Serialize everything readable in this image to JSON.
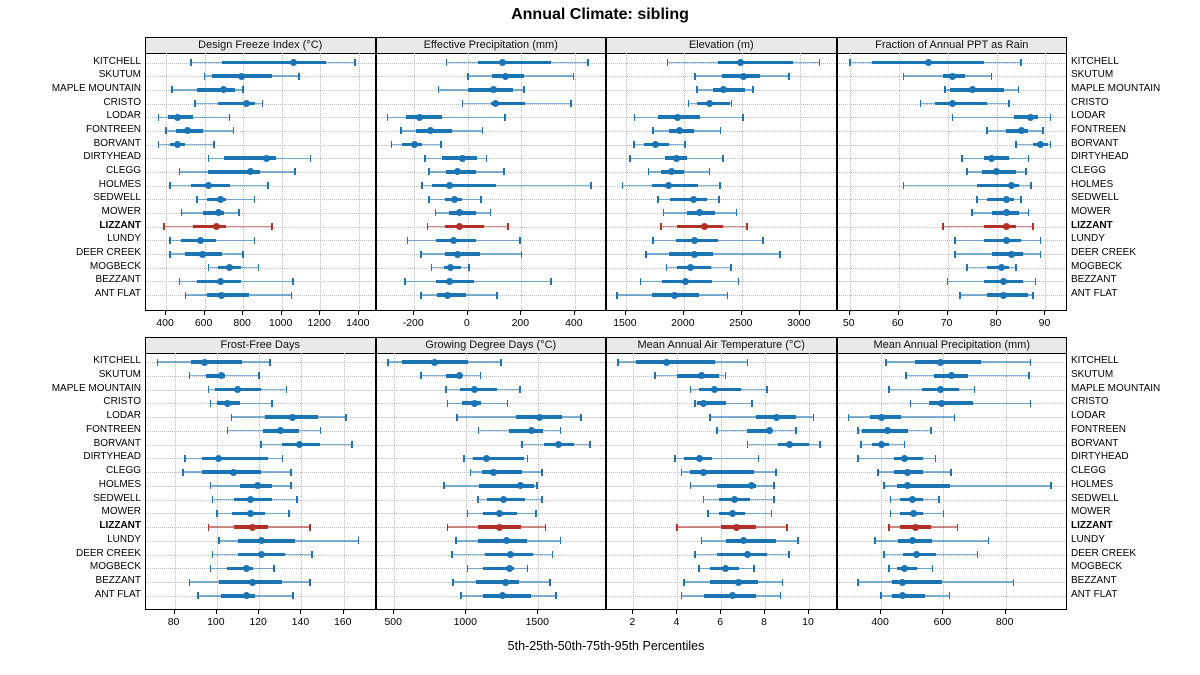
{
  "title": "Annual Climate: sibling",
  "footer": "5th-25th-50th-75th-95th Percentiles",
  "sites": [
    "KITCHELL",
    "SKUTUM",
    "MAPLE MOUNTAIN",
    "CRISTO",
    "LODAR",
    "FONTREEN",
    "BORVANT",
    "DIRTYHEAD",
    "CLEGG",
    "HOLMES",
    "SEDWELL",
    "MOWER",
    "LIZZANT",
    "LUNDY",
    "DEER CREEK",
    "MOGBECK",
    "BEZZANT",
    "ANT FLAT"
  ],
  "highlight_site": "LIZZANT",
  "colors": {
    "series": "#1b74b4",
    "highlight": "#b23028",
    "panel_header_bg": "#e9e9e9",
    "grid": "#bdbdbd",
    "frame": "#000000"
  },
  "chart_data": {
    "type": "dotplot-percentiles",
    "percentile_labels": [
      "5th",
      "25th",
      "50th",
      "75th",
      "95th"
    ],
    "legend_position": "none",
    "grid": "dotted",
    "panels": [
      {
        "title": "Design Freeze Index (°C)",
        "row": "top",
        "ticks": [
          400,
          600,
          800,
          1000,
          1200,
          1400
        ],
        "xlim": [
          296,
          1492
        ],
        "values": [
          [
            530,
            690,
            1060,
            1230,
            1380
          ],
          [
            600,
            640,
            790,
            950,
            1090
          ],
          [
            430,
            560,
            700,
            760,
            800
          ],
          [
            550,
            670,
            820,
            860,
            900
          ],
          [
            360,
            410,
            460,
            540,
            730
          ],
          [
            400,
            450,
            510,
            590,
            750
          ],
          [
            360,
            420,
            460,
            500,
            650
          ],
          [
            620,
            700,
            920,
            970,
            1150
          ],
          [
            470,
            620,
            840,
            890,
            1070
          ],
          [
            420,
            530,
            620,
            730,
            930
          ],
          [
            560,
            610,
            680,
            710,
            860
          ],
          [
            480,
            590,
            670,
            700,
            780
          ],
          [
            390,
            540,
            660,
            710,
            950
          ],
          [
            420,
            480,
            580,
            660,
            860
          ],
          [
            420,
            500,
            590,
            690,
            800
          ],
          [
            620,
            670,
            730,
            790,
            880
          ],
          [
            470,
            560,
            680,
            790,
            1060
          ],
          [
            500,
            610,
            690,
            830,
            1050
          ]
        ]
      },
      {
        "title": "Effective Precipitation (mm)",
        "row": "top",
        "ticks": [
          -200,
          0,
          200,
          400
        ],
        "xlim": [
          -341,
          520
        ],
        "values": [
          [
            -80,
            40,
            130,
            310,
            450
          ],
          [
            0,
            90,
            140,
            210,
            395
          ],
          [
            -110,
            0,
            95,
            170,
            210
          ],
          [
            -20,
            85,
            105,
            215,
            385
          ],
          [
            -300,
            -230,
            -180,
            -95,
            140
          ],
          [
            -250,
            -195,
            -140,
            -60,
            55
          ],
          [
            -285,
            -245,
            -200,
            -170,
            -100
          ],
          [
            -160,
            -95,
            -20,
            35,
            70
          ],
          [
            -145,
            -80,
            -40,
            30,
            135
          ],
          [
            -170,
            -135,
            -70,
            105,
            460
          ],
          [
            -145,
            -85,
            -50,
            -20,
            50
          ],
          [
            -120,
            -70,
            -30,
            30,
            85
          ],
          [
            -150,
            -85,
            -30,
            60,
            150
          ],
          [
            -225,
            -120,
            -55,
            30,
            195
          ],
          [
            -175,
            -85,
            -40,
            45,
            200
          ],
          [
            -135,
            -90,
            -65,
            -25,
            5
          ],
          [
            -235,
            -120,
            -70,
            25,
            310
          ],
          [
            -175,
            -115,
            -75,
            -5,
            110
          ]
        ]
      },
      {
        "title": "Elevation (m)",
        "row": "top",
        "ticks": [
          1500,
          2000,
          2500,
          3000
        ],
        "xlim": [
          1337,
          3325
        ],
        "values": [
          [
            1860,
            2295,
            2490,
            2940,
            3170
          ],
          [
            2095,
            2325,
            2510,
            2655,
            2905
          ],
          [
            2115,
            2255,
            2345,
            2525,
            2595
          ],
          [
            2040,
            2115,
            2225,
            2395,
            2410
          ],
          [
            1575,
            1775,
            1945,
            2140,
            2510
          ],
          [
            1735,
            1870,
            1965,
            2090,
            2315
          ],
          [
            1570,
            1660,
            1755,
            1870,
            2010
          ],
          [
            1535,
            1840,
            1935,
            2025,
            2335
          ],
          [
            1695,
            1805,
            1895,
            2005,
            2220
          ],
          [
            1470,
            1725,
            1870,
            2125,
            2310
          ],
          [
            1775,
            1880,
            2080,
            2200,
            2305
          ],
          [
            1825,
            2025,
            2135,
            2270,
            2455
          ],
          [
            1805,
            1945,
            2175,
            2340,
            2545
          ],
          [
            1735,
            1935,
            2095,
            2295,
            2685
          ],
          [
            1675,
            1870,
            2095,
            2255,
            2830
          ],
          [
            1850,
            1945,
            2055,
            2230,
            2405
          ],
          [
            1625,
            1810,
            2010,
            2240,
            2470
          ],
          [
            1425,
            1725,
            1915,
            2130,
            2375
          ]
        ]
      },
      {
        "title": "Fraction of Annual PPT as Rain",
        "row": "top",
        "ticks": [
          50,
          60,
          70,
          80,
          90
        ],
        "xlim": [
          47.5,
          94.6
        ],
        "values": [
          [
            50,
            54.5,
            66,
            77.5,
            85
          ],
          [
            61,
            69,
            71,
            73.5,
            79
          ],
          [
            69.5,
            70.5,
            75,
            81.5,
            84.5
          ],
          [
            64.5,
            67.5,
            71,
            78,
            82.5
          ],
          [
            71,
            83.5,
            87,
            88.5,
            91
          ],
          [
            78,
            82,
            85,
            86.5,
            89.5
          ],
          [
            84,
            87.5,
            89,
            90.5,
            91
          ],
          [
            73,
            77.5,
            79,
            82.5,
            86.5
          ],
          [
            74,
            77,
            80,
            84,
            86
          ],
          [
            61,
            76,
            83,
            84.5,
            87
          ],
          [
            76,
            78,
            82,
            83.5,
            85
          ],
          [
            75,
            79,
            82,
            84.5,
            86.5
          ],
          [
            69,
            77.5,
            82,
            84,
            87.5
          ],
          [
            71.5,
            77.5,
            82,
            85,
            89
          ],
          [
            71.5,
            79,
            83,
            85.5,
            89
          ],
          [
            74,
            78,
            81,
            82.5,
            84
          ],
          [
            70,
            77.5,
            81.5,
            85.5,
            88
          ],
          [
            72.5,
            78,
            81.5,
            86.5,
            87.5
          ]
        ]
      },
      {
        "title": "Frost-Free Days",
        "row": "bottom",
        "ticks": [
          80,
          100,
          120,
          140,
          160
        ],
        "xlim": [
          66.5,
          175.5
        ],
        "values": [
          [
            72,
            88,
            94,
            112,
            125
          ],
          [
            87,
            95,
            102,
            104,
            120
          ],
          [
            96,
            99,
            110,
            121,
            133
          ],
          [
            97,
            100,
            105,
            111,
            126
          ],
          [
            107,
            123,
            136,
            148,
            161
          ],
          [
            105,
            122,
            130,
            139,
            149
          ],
          [
            121,
            131,
            139,
            149,
            164
          ],
          [
            85,
            93,
            101,
            124,
            131
          ],
          [
            84,
            93,
            108,
            121,
            135
          ],
          [
            97,
            111,
            119,
            126,
            135
          ],
          [
            98,
            108,
            116,
            126,
            138
          ],
          [
            100,
            107,
            116,
            123,
            134
          ],
          [
            96,
            108,
            117,
            124,
            144
          ],
          [
            101,
            110,
            121,
            137,
            167
          ],
          [
            98,
            110,
            121,
            132,
            145
          ],
          [
            97,
            105,
            114,
            117,
            127
          ],
          [
            87,
            101,
            117,
            131,
            144
          ],
          [
            91,
            102,
            114,
            118,
            136
          ]
        ]
      },
      {
        "title": "Growing Degree Days (°C)",
        "row": "bottom",
        "ticks": [
          500,
          1000,
          1500
        ],
        "xlim": [
          377,
          1977
        ],
        "values": [
          [
            455,
            555,
            780,
            1010,
            1240
          ],
          [
            685,
            860,
            955,
            965,
            1100
          ],
          [
            860,
            955,
            1055,
            1210,
            1375
          ],
          [
            870,
            970,
            1055,
            1100,
            1285
          ],
          [
            935,
            1345,
            1510,
            1665,
            1795
          ],
          [
            1085,
            1300,
            1450,
            1530,
            1655
          ],
          [
            1385,
            1540,
            1640,
            1750,
            1860
          ],
          [
            985,
            1045,
            1140,
            1400,
            1425
          ],
          [
            1030,
            1110,
            1190,
            1385,
            1525
          ],
          [
            845,
            1090,
            1380,
            1470,
            1490
          ],
          [
            1080,
            1145,
            1260,
            1410,
            1525
          ],
          [
            1010,
            1115,
            1230,
            1355,
            1485
          ],
          [
            870,
            1080,
            1230,
            1380,
            1550
          ],
          [
            930,
            1080,
            1280,
            1420,
            1655
          ],
          [
            900,
            1130,
            1305,
            1465,
            1600
          ],
          [
            1010,
            1115,
            1300,
            1330,
            1425
          ],
          [
            910,
            1070,
            1270,
            1365,
            1580
          ],
          [
            965,
            1115,
            1250,
            1450,
            1625
          ]
        ]
      },
      {
        "title": "Mean Annual Air Temperature (°C)",
        "row": "bottom",
        "ticks": [
          2,
          4,
          6,
          8,
          10
        ],
        "xlim": [
          0.8,
          11.3
        ],
        "values": [
          [
            1.3,
            2.1,
            3.5,
            5.7,
            7.2
          ],
          [
            3.0,
            4.0,
            5.1,
            5.9,
            6.2
          ],
          [
            4.6,
            5.0,
            5.7,
            6.9,
            8.1
          ],
          [
            4.8,
            4.9,
            5.2,
            6.2,
            7.4
          ],
          [
            5.5,
            7.6,
            8.5,
            9.4,
            10.2
          ],
          [
            5.8,
            7.2,
            8.2,
            8.3,
            9.4
          ],
          [
            7.2,
            8.6,
            9.1,
            10.0,
            10.5
          ],
          [
            3.9,
            4.3,
            5.0,
            5.6,
            7.7
          ],
          [
            4.2,
            4.6,
            5.2,
            7.5,
            8.5
          ],
          [
            4.6,
            5.8,
            7.4,
            7.6,
            8.4
          ],
          [
            5.2,
            5.9,
            6.6,
            7.3,
            8.4
          ],
          [
            5.4,
            5.9,
            6.5,
            7.1,
            8.3
          ],
          [
            4.0,
            6.0,
            6.7,
            7.6,
            9.0
          ],
          [
            5.1,
            6.2,
            7.0,
            8.5,
            9.5
          ],
          [
            4.8,
            5.8,
            7.2,
            8.1,
            9.1
          ],
          [
            5.0,
            5.5,
            6.2,
            6.8,
            7.5
          ],
          [
            4.3,
            5.5,
            6.8,
            7.7,
            8.8
          ],
          [
            4.2,
            5.2,
            6.5,
            7.6,
            8.7
          ]
        ]
      },
      {
        "title": "Mean Annual Precipitation (mm)",
        "row": "bottom",
        "ticks": [
          400,
          600,
          800
        ],
        "xlim": [
          260,
          1000
        ],
        "values": [
          [
            415,
            510,
            590,
            720,
            880
          ],
          [
            480,
            570,
            625,
            680,
            875
          ],
          [
            425,
            530,
            590,
            650,
            700
          ],
          [
            495,
            555,
            595,
            695,
            880
          ],
          [
            295,
            365,
            400,
            465,
            635
          ],
          [
            325,
            340,
            420,
            485,
            560
          ],
          [
            335,
            370,
            400,
            425,
            475
          ],
          [
            325,
            440,
            475,
            535,
            575
          ],
          [
            390,
            440,
            485,
            535,
            625
          ],
          [
            410,
            450,
            485,
            620,
            945
          ],
          [
            430,
            460,
            500,
            535,
            585
          ],
          [
            430,
            460,
            505,
            535,
            600
          ],
          [
            425,
            460,
            510,
            560,
            645
          ],
          [
            380,
            455,
            500,
            565,
            745
          ],
          [
            410,
            470,
            515,
            575,
            710
          ],
          [
            425,
            450,
            475,
            515,
            565
          ],
          [
            325,
            435,
            470,
            595,
            825
          ],
          [
            400,
            435,
            470,
            540,
            620
          ]
        ]
      }
    ]
  }
}
